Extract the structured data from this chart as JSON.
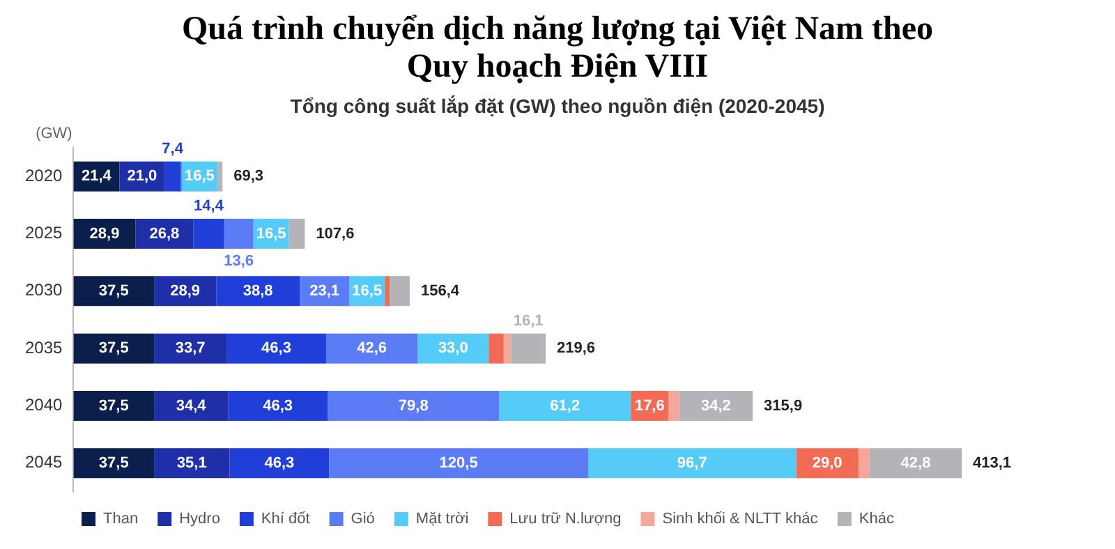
{
  "chart_data": {
    "type": "bar",
    "orientation": "horizontal",
    "stacked": true,
    "title": "Quá trình chuyển dịch năng lượng tại Việt Nam theo Quy hoạch Điện VIII",
    "subtitle": "Tổng công suất lắp đặt (GW) theo nguồn điện (2020-2045)",
    "ylabel": "(GW)",
    "categories": [
      "2020",
      "2025",
      "2030",
      "2035",
      "2040",
      "2045"
    ],
    "legend": "bottom",
    "grid": false,
    "tick_labels": "y",
    "series": [
      {
        "name": "Than",
        "color": "#0b1f4d",
        "values": [
          21.4,
          28.9,
          37.5,
          37.5,
          37.5,
          37.5
        ],
        "value_labels": [
          "21,4",
          "28,9",
          "37,5",
          "37,5",
          "37,5",
          "37,5"
        ]
      },
      {
        "name": "Hydro",
        "color": "#1e2fa8",
        "values": [
          21.0,
          26.8,
          28.9,
          33.7,
          34.4,
          35.1
        ],
        "value_labels": [
          "21,0",
          "26,8",
          "28,9",
          "33,7",
          "34,4",
          "35,1"
        ]
      },
      {
        "name": "Khí đốt",
        "color": "#1f3fd8",
        "values": [
          7.4,
          14.4,
          38.8,
          46.3,
          46.3,
          46.3
        ],
        "value_labels": [
          "7,4",
          "14,4",
          "38,8",
          "46,3",
          "46,3",
          "46,3"
        ]
      },
      {
        "name": "Gió",
        "color": "#5b7cf5",
        "values": [
          0.6,
          13.6,
          23.1,
          42.6,
          79.8,
          120.5
        ],
        "value_labels": [
          null,
          "13,6",
          "23,1",
          "42,6",
          "79,8",
          "120,5"
        ]
      },
      {
        "name": "Mặt trời",
        "color": "#55ccf7",
        "values": [
          16.5,
          16.5,
          16.5,
          33.0,
          61.2,
          96.7
        ],
        "value_labels": [
          "16,5",
          "16,5",
          "16,5",
          "33,0",
          "61,2",
          "96,7"
        ]
      },
      {
        "name": "Lưu trữ N.lượng",
        "color": "#f26b55",
        "values": [
          null,
          null,
          2.2,
          7.0,
          17.6,
          29.0
        ],
        "value_labels": [
          null,
          null,
          null,
          null,
          "17,6",
          "29,0"
        ]
      },
      {
        "name": "Sinh khối & NLTT khác",
        "color": "#f5a79a",
        "values": [
          null,
          null,
          null,
          3.4,
          4.9,
          5.2
        ],
        "value_labels": [
          null,
          null,
          null,
          null,
          null,
          null
        ]
      },
      {
        "name": "Khác",
        "color": "#b3b3b8",
        "values": [
          2.4,
          7.4,
          9.4,
          16.1,
          34.2,
          42.8
        ],
        "value_labels": [
          null,
          null,
          null,
          "16,1",
          "34,2",
          "42,8"
        ]
      }
    ],
    "totals": [
      "69,3",
      "107,6",
      "156,4",
      "219,6",
      "315,9",
      "413,1"
    ]
  }
}
